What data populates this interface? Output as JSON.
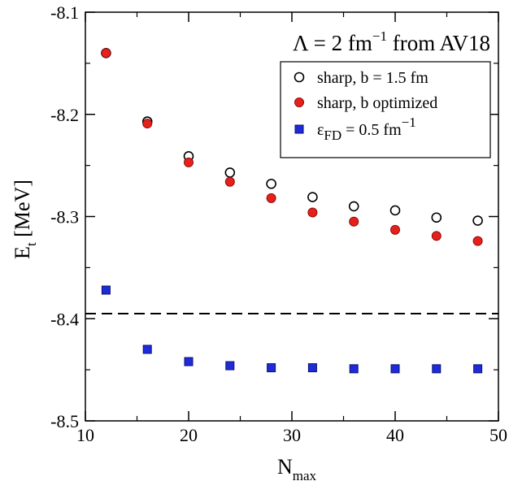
{
  "chart_data": {
    "type": "scatter",
    "xlabel": {
      "main": "N",
      "sub": "max"
    },
    "ylabel": {
      "main": "E",
      "sub": "t",
      "rest": " [MeV]"
    },
    "xlim": [
      10,
      50
    ],
    "ylim": [
      -8.5,
      -8.1
    ],
    "xticks": [
      10,
      20,
      30,
      40,
      50
    ],
    "xtick_labels": [
      "10",
      "20",
      "30",
      "40",
      "50"
    ],
    "yticks": [
      -8.5,
      -8.4,
      -8.3,
      -8.2,
      -8.1
    ],
    "ytick_labels": [
      "-8.5",
      "-8.4",
      "-8.3",
      "-8.2",
      "-8.1"
    ],
    "grid": false,
    "legend_position": "top-right",
    "annotation": {
      "text": "Λ = 2 fm",
      "sup": "−1",
      "tail": " from AV18"
    },
    "reference_line": {
      "y": -8.395,
      "style": "dashed",
      "color": "#000000"
    },
    "series": [
      {
        "name": "sharp,  b = 1.5 fm",
        "marker": "open-circle",
        "color": "#000000",
        "x": [
          12,
          16,
          20,
          24,
          28,
          32,
          36,
          40,
          44,
          48
        ],
        "y": [
          -8.14,
          -8.207,
          -8.241,
          -8.257,
          -8.268,
          -8.281,
          -8.29,
          -8.294,
          -8.301,
          -8.304
        ]
      },
      {
        "name": "sharp,  b optimized",
        "marker": "filled-circle",
        "color": "#e8201c",
        "x": [
          12,
          16,
          20,
          24,
          28,
          32,
          36,
          40,
          44,
          48
        ],
        "y": [
          -8.14,
          -8.209,
          -8.247,
          -8.266,
          -8.282,
          -8.296,
          -8.305,
          -8.313,
          -8.319,
          -8.324
        ]
      },
      {
        "name_main": "ε",
        "name_sub": "FD",
        "name_rest": " = 0.5 fm",
        "name_sup": "−1",
        "marker": "filled-square",
        "color": "#1f2bd8",
        "x": [
          12,
          16,
          20,
          24,
          28,
          32,
          36,
          40,
          44,
          48
        ],
        "y": [
          -8.372,
          -8.43,
          -8.442,
          -8.446,
          -8.448,
          -8.448,
          -8.449,
          -8.449,
          -8.449,
          -8.449
        ]
      }
    ]
  }
}
